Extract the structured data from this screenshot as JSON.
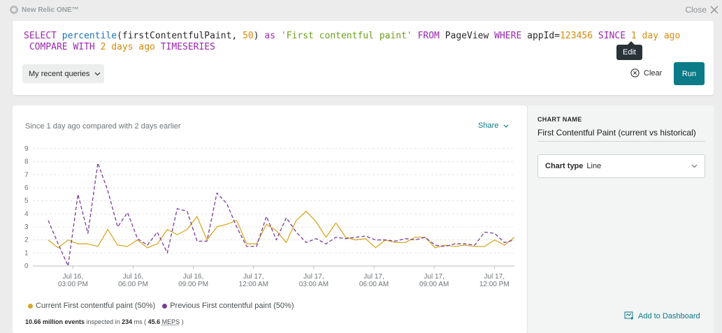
{
  "topbar": {
    "brand": "New Relic ONE™",
    "close_label": "Close"
  },
  "query": {
    "tokens": [
      {
        "t": "SELECT ",
        "c": "kw"
      },
      {
        "t": "percentile",
        "c": "fn"
      },
      {
        "t": "(firstContentfulPaint, ",
        "c": ""
      },
      {
        "t": "50",
        "c": "num"
      },
      {
        "t": ") ",
        "c": ""
      },
      {
        "t": "as ",
        "c": "kw"
      },
      {
        "t": "'First contentful paint' ",
        "c": "str"
      },
      {
        "t": "FROM ",
        "c": "kw"
      },
      {
        "t": "PageView ",
        "c": ""
      },
      {
        "t": "WHERE ",
        "c": "kw"
      },
      {
        "t": "appId=",
        "c": ""
      },
      {
        "t": "123456 ",
        "c": "num"
      },
      {
        "t": "SINCE ",
        "c": "kw"
      },
      {
        "t": "1 ",
        "c": "num"
      },
      {
        "t": "day ",
        "c": "num"
      },
      {
        "t": "ago",
        "c": "num"
      },
      {
        "t": "\n COMPARE WITH ",
        "c": "kw"
      },
      {
        "t": "2 ",
        "c": "num"
      },
      {
        "t": "days ",
        "c": "num"
      },
      {
        "t": "ago ",
        "c": "num"
      },
      {
        "t": "TIMESERIES",
        "c": "kw"
      }
    ],
    "edit_tooltip": "Edit",
    "recent_label": "My recent queries",
    "clear_label": "Clear",
    "run_label": "Run"
  },
  "chart": {
    "subtitle": "Since 1 day ago compared with 2 days earlier",
    "share_label": "Share",
    "legend": [
      {
        "label": "Current First contentful paint (50%)",
        "color": "#d7a82a"
      },
      {
        "label": "Previous First contentful paint (50%)",
        "color": "#7b3c96"
      }
    ],
    "events_count": "10.66 million events",
    "events_mid": " inspected in ",
    "events_ms": "234",
    "events_ms_unit": " ms ( ",
    "events_meps_val": "45.6",
    "events_meps": "MEPS",
    "events_end": " )"
  },
  "chart_data": {
    "type": "line",
    "ylim": [
      0,
      9
    ],
    "yticks": [
      0,
      1,
      2,
      3,
      4,
      5,
      6,
      7,
      8,
      9
    ],
    "xlim": [
      0,
      24
    ],
    "xticks": [
      {
        "x": 2,
        "l1": "Jul 16,",
        "l2": "03:00 PM"
      },
      {
        "x": 5,
        "l1": "Jul 16,",
        "l2": "06:00 PM"
      },
      {
        "x": 8,
        "l1": "Jul 16,",
        "l2": "09:00 PM"
      },
      {
        "x": 11,
        "l1": "Jul 17,",
        "l2": "12:00 AM"
      },
      {
        "x": 14,
        "l1": "Jul 17,",
        "l2": "03:00 AM"
      },
      {
        "x": 17,
        "l1": "Jul 17,",
        "l2": "06:00 AM"
      },
      {
        "x": 20,
        "l1": "Jul 17,",
        "l2": "09:00 AM"
      },
      {
        "x": 23,
        "l1": "Jul 17,",
        "l2": "12:00 PM"
      }
    ],
    "series": [
      {
        "name": "Current First contentful paint (50%)",
        "color": "#d7a82a",
        "dashed": false,
        "values": [
          2.0,
          1.4,
          2.0,
          1.7,
          1.7,
          1.5,
          2.8,
          1.6,
          1.5,
          2.0,
          1.4,
          1.7,
          2.8,
          2.4,
          2.8,
          3.8,
          2.0,
          3.0,
          3.2,
          3.5,
          1.7,
          1.7,
          3.2,
          2.7,
          1.8,
          3.5,
          4.2,
          3.4,
          2.2,
          3.3,
          2.2,
          2.0,
          2.1,
          1.4,
          2.0,
          1.8,
          1.8,
          2.2,
          2.2,
          1.4,
          1.6,
          1.5,
          1.6,
          1.5,
          1.5,
          2.0,
          1.6,
          2.2
        ]
      },
      {
        "name": "Previous First contentful paint (50%)",
        "color": "#7b3c96",
        "dashed": true,
        "values": [
          3.5,
          1.7,
          0.0,
          5.5,
          2.5,
          7.9,
          5.8,
          3.0,
          4.1,
          2.1,
          1.6,
          2.6,
          1.0,
          4.4,
          4.2,
          1.9,
          1.9,
          5.6,
          4.8,
          3.0,
          1.5,
          1.5,
          3.8,
          2.0,
          3.7,
          2.6,
          1.8,
          2.1,
          1.7,
          2.2,
          2.1,
          2.2,
          2.3,
          2.0,
          2.0,
          1.9,
          2.1,
          2.0,
          2.2,
          1.6,
          1.5,
          1.7,
          1.7,
          1.6,
          2.6,
          2.5,
          1.8,
          2.0
        ]
      }
    ]
  },
  "side": {
    "chart_name_label": "CHART NAME",
    "chart_name_value": "First Contentful Paint (current vs historical)",
    "chart_type_label": "Chart type",
    "chart_type_value": "Line",
    "add_dashboard_label": "Add to Dashboard"
  }
}
